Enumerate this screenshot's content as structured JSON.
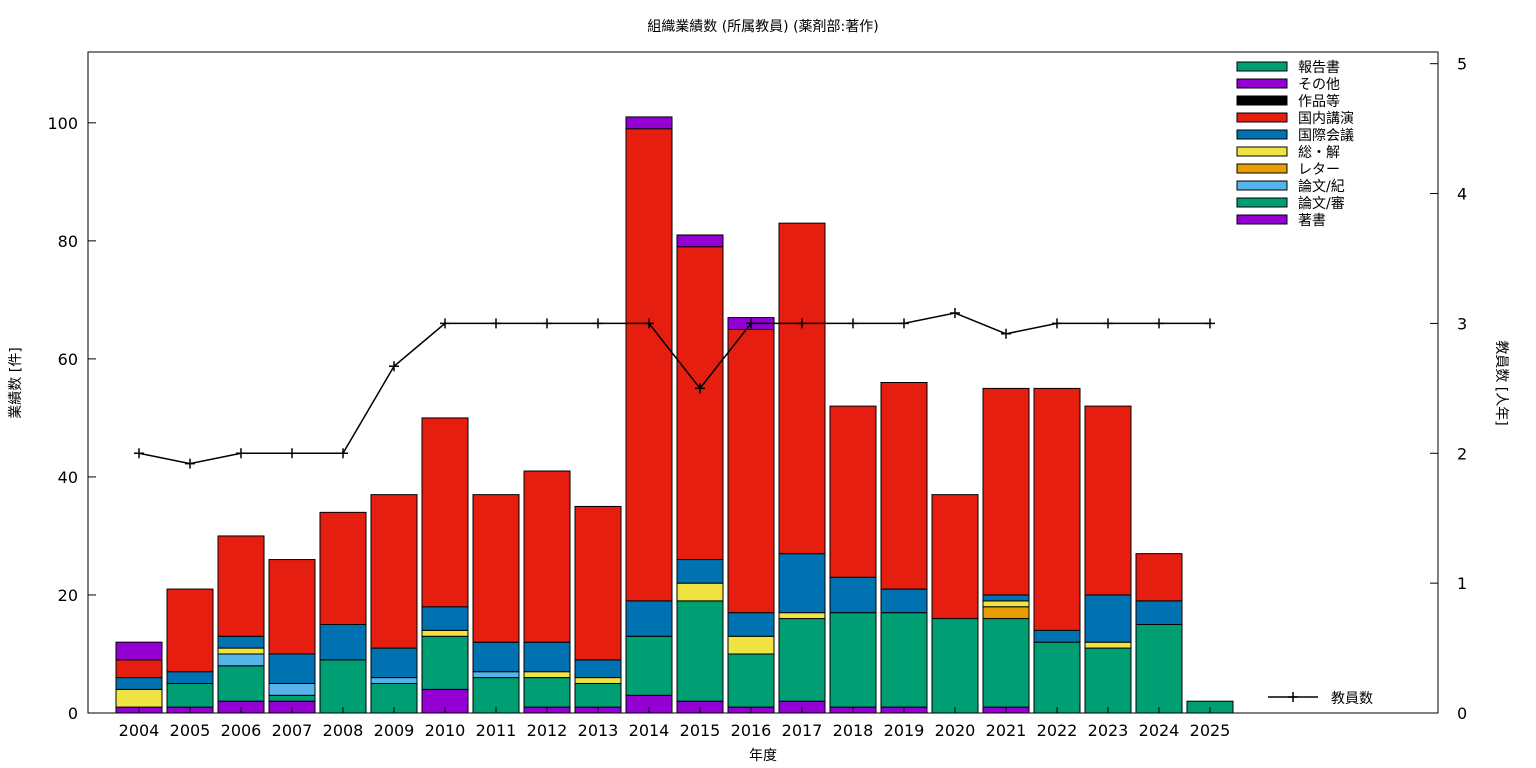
{
  "chart_data": {
    "type": "bar",
    "stacked": true,
    "title": "組織業績数 (所属教員) (薬剤部:著作)",
    "xlabel": "年度",
    "ylabel": "業績数 [件]",
    "y2label": "教員数 [人年]",
    "ylim": [
      0,
      112
    ],
    "y2lim": [
      0,
      5.09
    ],
    "yticks": [
      0,
      20,
      40,
      60,
      80,
      100
    ],
    "y2ticks": [
      0,
      1,
      2,
      3,
      4,
      5
    ],
    "legend_position": "top-right",
    "categories": [
      "2004",
      "2005",
      "2006",
      "2007",
      "2008",
      "2009",
      "2010",
      "2011",
      "2012",
      "2013",
      "2014",
      "2015",
      "2016",
      "2017",
      "2018",
      "2019",
      "2020",
      "2021",
      "2022",
      "2023",
      "2024",
      "2025"
    ],
    "series": [
      {
        "name": "著書",
        "color": "#9400d3",
        "values": [
          1,
          1,
          2,
          2,
          0,
          0,
          4,
          0,
          1,
          1,
          3,
          2,
          1,
          2,
          1,
          1,
          0,
          1,
          0,
          0,
          0,
          0
        ]
      },
      {
        "name": "論文/審",
        "color": "#009e73",
        "values": [
          0,
          4,
          6,
          1,
          9,
          5,
          9,
          6,
          5,
          4,
          10,
          17,
          9,
          14,
          16,
          16,
          16,
          15,
          12,
          11,
          15,
          2
        ]
      },
      {
        "name": "論文/紀",
        "color": "#56b4e9",
        "values": [
          0,
          0,
          2,
          2,
          0,
          1,
          0,
          1,
          0,
          0,
          0,
          0,
          0,
          0,
          0,
          0,
          0,
          0,
          0,
          0,
          0,
          0
        ]
      },
      {
        "name": "レター",
        "color": "#e69f00",
        "values": [
          0,
          0,
          0,
          0,
          0,
          0,
          0,
          0,
          0,
          0,
          0,
          0,
          0,
          0,
          0,
          0,
          0,
          2,
          0,
          0,
          0,
          0
        ]
      },
      {
        "name": "総・解",
        "color": "#f0e442",
        "values": [
          3,
          0,
          1,
          0,
          0,
          0,
          1,
          0,
          1,
          1,
          0,
          3,
          3,
          1,
          0,
          0,
          0,
          1,
          0,
          1,
          0,
          0
        ]
      },
      {
        "name": "国際会議",
        "color": "#0072b2",
        "values": [
          2,
          2,
          2,
          5,
          6,
          5,
          4,
          5,
          5,
          3,
          6,
          4,
          4,
          10,
          6,
          4,
          0,
          1,
          2,
          8,
          4,
          0
        ]
      },
      {
        "name": "国内講演",
        "color": "#e51e10",
        "values": [
          3,
          14,
          17,
          16,
          19,
          26,
          32,
          25,
          29,
          26,
          80,
          53,
          48,
          56,
          29,
          35,
          21,
          35,
          41,
          32,
          8,
          0
        ]
      },
      {
        "name": "作品等",
        "color": "#000000",
        "values": [
          0,
          0,
          0,
          0,
          0,
          0,
          0,
          0,
          0,
          0,
          0,
          0,
          0,
          0,
          0,
          0,
          0,
          0,
          0,
          0,
          0,
          0
        ]
      },
      {
        "name": "その他",
        "color": "#9400d3",
        "values": [
          3,
          0,
          0,
          0,
          0,
          0,
          0,
          0,
          0,
          0,
          2,
          2,
          2,
          0,
          0,
          0,
          0,
          0,
          0,
          0,
          0,
          0
        ]
      },
      {
        "name": "報告書",
        "color": "#009e73",
        "values": [
          0,
          0,
          0,
          0,
          0,
          0,
          0,
          0,
          0,
          0,
          0,
          0,
          0,
          0,
          0,
          0,
          0,
          0,
          0,
          0,
          0,
          0
        ]
      }
    ],
    "legend_order": [
      "報告書",
      "その他",
      "作品等",
      "国内講演",
      "国際会議",
      "総・解",
      "レター",
      "論文/紀",
      "論文/審",
      "著書"
    ],
    "line_series": {
      "name": "教員数",
      "axis": "y2",
      "color": "#000000",
      "categories": [
        "2004",
        "2005",
        "2006",
        "2007",
        "2008",
        "2009",
        "2010",
        "2011",
        "2012",
        "2013",
        "2014",
        "2015",
        "2016",
        "2017",
        "2018",
        "2019",
        "2020",
        "2021",
        "2022",
        "2023",
        "2024",
        "2025"
      ],
      "values": [
        2,
        1.92,
        2,
        2,
        2,
        2.67,
        3,
        3,
        3,
        3,
        3,
        2.5,
        3,
        3,
        3,
        3,
        3.08,
        2.92,
        3,
        3,
        3,
        3
      ]
    }
  }
}
